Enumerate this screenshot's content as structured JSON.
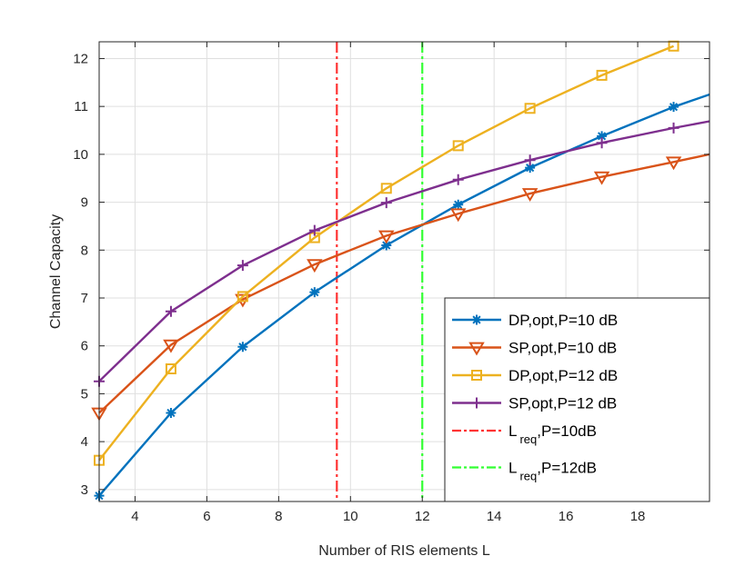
{
  "chart_data": {
    "type": "line",
    "xlabel": "Number of RIS elements L",
    "ylabel": "Channel Capacity",
    "xlim": [
      3,
      20
    ],
    "ylim": [
      2.75,
      12.35
    ],
    "xticks": [
      4,
      6,
      8,
      10,
      12,
      14,
      16,
      18
    ],
    "yticks": [
      3,
      4,
      5,
      6,
      7,
      8,
      9,
      10,
      11,
      12
    ],
    "grid": true,
    "legend_position": "bottom-right",
    "series": [
      {
        "name": "DP,opt,P=10 dB",
        "color": "#0072BD",
        "marker": "asterisk",
        "x": [
          3,
          5,
          7,
          9,
          11,
          13,
          15,
          17,
          19,
          20
        ],
        "y": [
          2.87,
          4.6,
          5.98,
          7.12,
          8.1,
          8.95,
          9.72,
          10.38,
          10.99,
          11.25
        ]
      },
      {
        "name": "SP,opt,P=10 dB",
        "color": "#D95319",
        "marker": "triangle-down",
        "x": [
          3,
          5,
          7,
          9,
          11,
          13,
          15,
          17,
          19,
          20
        ],
        "y": [
          4.6,
          6.02,
          6.97,
          7.7,
          8.3,
          8.76,
          9.18,
          9.53,
          9.84,
          10.0
        ]
      },
      {
        "name": "DP,opt,P=12 dB",
        "color": "#EDB120",
        "marker": "square",
        "x": [
          3,
          5,
          7,
          9,
          11,
          13,
          15,
          17,
          19
        ],
        "y": [
          3.61,
          5.52,
          7.03,
          8.26,
          9.29,
          10.18,
          10.96,
          11.65,
          12.26
        ]
      },
      {
        "name": "SP,opt,P=12 dB",
        "color": "#7E2F8E",
        "marker": "plus",
        "x": [
          3,
          5,
          7,
          9,
          11,
          13,
          15,
          17,
          19,
          20
        ],
        "y": [
          5.26,
          6.72,
          7.68,
          8.41,
          8.99,
          9.47,
          9.88,
          10.24,
          10.55,
          10.69
        ]
      }
    ],
    "vlines": [
      {
        "name": "L",
        "sub": "req",
        "suffix": ",P=10dB",
        "x": 9.62,
        "color": "#FF3333",
        "style": "dash-dot"
      },
      {
        "name": "L",
        "sub": "req",
        "suffix": ",P=12dB",
        "x": 12.0,
        "color": "#33FF33",
        "style": "dash-dot"
      }
    ]
  }
}
